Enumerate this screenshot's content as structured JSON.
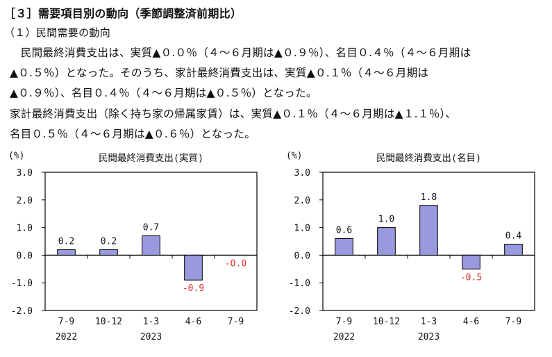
{
  "heading": "［３］需要項目別の動向（季節調整済前期比）",
  "subheading": "（１）民間需要の動向",
  "paragraph": {
    "line1": "　民間最終消費支出は、実質▲０.０％（４～６月期は▲０.９％）、名目０.４％（４～６月期は",
    "line2": "▲０.５％）となった。そのうち、家計最終消費支出は、実質▲０.１％（４～６月期は",
    "line3": "▲０.９％）、名目０.４％（４～６月期は▲０.５％）となった。",
    "line4": "家計最終消費支出（除く持ち家の帰属家賃）は、実質▲０.１％（４～６月期は▲１.１％）、",
    "line5": "名目０.５％（４～６月期は▲０.６％）となった。"
  },
  "colors": {
    "bar": "#9999dd",
    "negative_label": "#e03030",
    "text": "#111111"
  },
  "chart_data": [
    {
      "type": "bar",
      "title": "民間最終消費支出(実質)",
      "unit_label": "(%)",
      "categories": [
        "7-9",
        "10-12",
        "1-3",
        "4-6",
        "7-9"
      ],
      "year_labels": [
        {
          "category_index": 0,
          "label": "2022"
        },
        {
          "category_index": 2,
          "label": "2023"
        }
      ],
      "values": [
        0.2,
        0.2,
        0.7,
        -0.9,
        -0.0
      ],
      "value_labels": [
        "0.2",
        "0.2",
        "0.7",
        "-0.9",
        "-0.0"
      ],
      "ylim": [
        -2.0,
        3.0
      ],
      "yticks": [
        3.0,
        2.0,
        1.0,
        0.0,
        -1.0,
        -2.0
      ],
      "ytick_labels": [
        "3.0",
        "2.0",
        "1.0",
        "0.0",
        "-1.0",
        "-2.0"
      ],
      "grid": false
    },
    {
      "type": "bar",
      "title": "民間最終消費支出(名目)",
      "unit_label": "(%)",
      "categories": [
        "7-9",
        "10-12",
        "1-3",
        "4-6",
        "7-9"
      ],
      "year_labels": [
        {
          "category_index": 0,
          "label": "2022"
        },
        {
          "category_index": 2,
          "label": "2023"
        }
      ],
      "values": [
        0.6,
        1.0,
        1.8,
        -0.5,
        0.4
      ],
      "value_labels": [
        "0.6",
        "1.0",
        "1.8",
        "-0.5",
        "0.4"
      ],
      "ylim": [
        -2.0,
        3.0
      ],
      "yticks": [
        3.0,
        2.0,
        1.0,
        0.0,
        -1.0,
        -2.0
      ],
      "ytick_labels": [
        "3.0",
        "2.0",
        "1.0",
        "0.0",
        "-1.0",
        "-2.0"
      ],
      "grid": false
    }
  ]
}
